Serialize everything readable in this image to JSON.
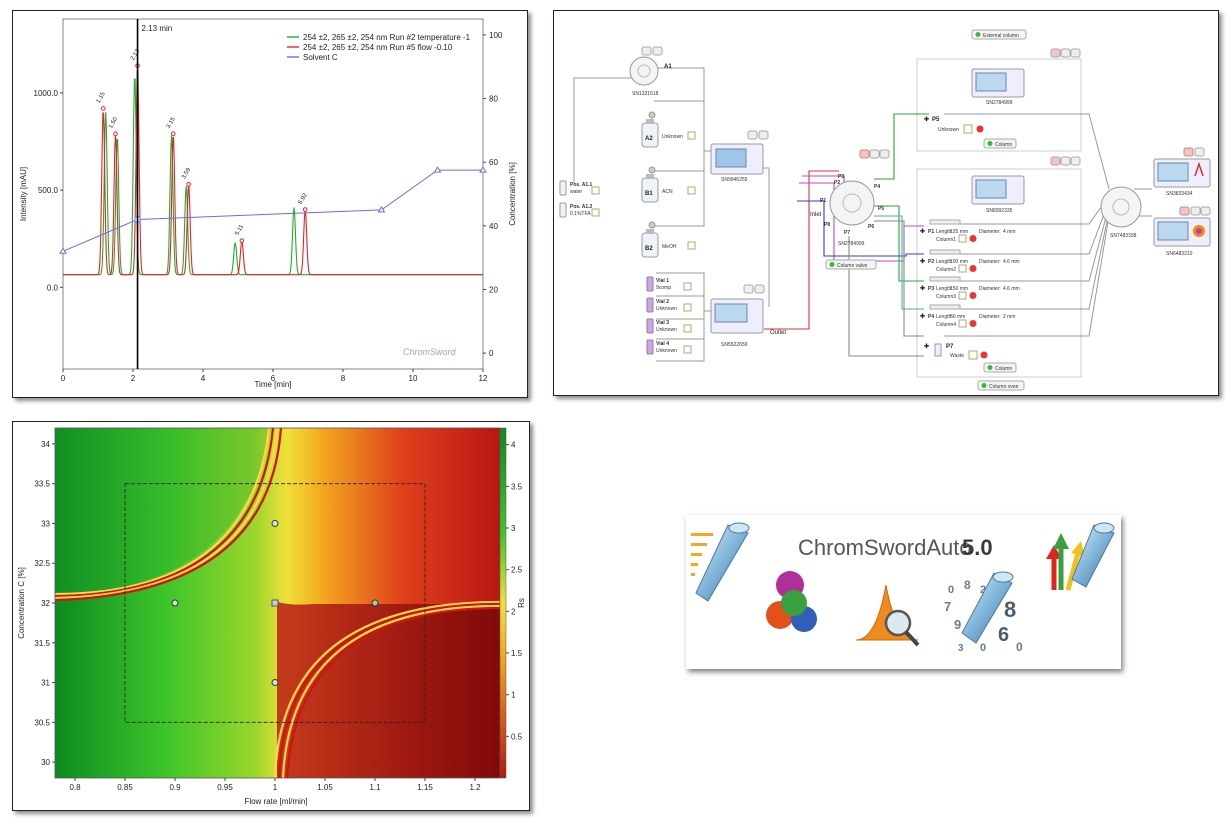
{
  "chromatogram": {
    "cursor_label": "2.13 min",
    "cursor_x": 2.13,
    "xlabel": "Time [min]",
    "ylabel_left": "Intensity [mAU]",
    "ylabel_right": "Concentration [%]",
    "x_ticks": [
      "0",
      "2",
      "4",
      "6",
      "8",
      "10",
      "12"
    ],
    "y_ticks_left": [
      "0.0",
      "500.0",
      "1000.0"
    ],
    "y_ticks_right": [
      "0",
      "20",
      "40",
      "60",
      "80",
      "100"
    ],
    "watermark": "ChromSword",
    "legend": [
      {
        "label": "254 ±2, 265 ±2, 254 nm Run #2 temperature -1",
        "color": "#1fae2b"
      },
      {
        "label": "254 ±2, 265 ±2, 254 nm Run #5 flow -0.10",
        "color": "#e0262b"
      },
      {
        "label": "Solvent C",
        "color": "#6b6be8"
      }
    ],
    "peak_labels": [
      "1.15",
      "1.50",
      "2.13",
      "3.15",
      "3.59",
      "5.11",
      "6.92"
    ],
    "chart_data": {
      "type": "line",
      "xlim": [
        0,
        12
      ],
      "ylim_left": [
        -420,
        1380
      ],
      "ylim_right": [
        -5,
        105
      ],
      "series": [
        {
          "name": "254 ±2, 265 ±2, 254 nm Run #2 temperature -1",
          "peaks": [
            [
              1.22,
              900
            ],
            [
              1.55,
              780
            ],
            [
              2.05,
              1100
            ],
            [
              3.1,
              780
            ],
            [
              3.52,
              520
            ],
            [
              4.92,
              230
            ],
            [
              6.6,
              410
            ]
          ],
          "baseline": 65
        },
        {
          "name": "254 ±2, 265 ±2, 254 nm Run #5 flow -0.10",
          "peaks": [
            [
              1.15,
              920
            ],
            [
              1.5,
              790
            ],
            [
              2.13,
              1140
            ],
            [
              3.15,
              790
            ],
            [
              3.59,
              530
            ],
            [
              5.11,
              240
            ],
            [
              6.92,
              400
            ]
          ],
          "baseline": 65
        },
        {
          "name": "Solvent C",
          "axis": "right",
          "x": [
            0,
            2.13,
            9.1,
            10.7,
            12
          ],
          "y": [
            32,
            42,
            45,
            57.5,
            57.5
          ]
        }
      ]
    }
  },
  "system": {
    "external_column_label": "External column",
    "column_valve_label": "Column valve",
    "column_oven_label": "Column oven",
    "column_label": "Column",
    "outlet_label": "Outlet",
    "inlet_label": "Inlet",
    "valve_a": {
      "name": "A1",
      "serial": "SN1321518"
    },
    "bottles": [
      {
        "name": "A2",
        "content": "Unknown"
      },
      {
        "name": "B1",
        "content": "ACN"
      },
      {
        "name": "B2",
        "content": "MeOH"
      }
    ],
    "positions": [
      {
        "name": "Pos. A1.1",
        "content": "water"
      },
      {
        "name": "Pos. A1.2",
        "content": "0.1%TFA"
      }
    ],
    "vials": [
      {
        "name": "Vial 1",
        "content": "9comp"
      },
      {
        "name": "Vial 2",
        "content": "Unknown"
      },
      {
        "name": "Vial 3",
        "content": "Unknown"
      },
      {
        "name": "Vial 4",
        "content": "Unknown"
      }
    ],
    "pump_serial": "SN9946255",
    "sampler_serial": "SN5522659",
    "column_valve_serial": "SN2784999",
    "column_valve_ports": [
      "P1",
      "P2",
      "P3",
      "P4",
      "P5",
      "P6",
      "P7",
      "P8"
    ],
    "external_device_serial": "SN2784999",
    "oven_device_serial": "SN8392335",
    "external_p5": {
      "port": "P5",
      "name": "Unknown"
    },
    "columns": [
      {
        "port": "P1",
        "length": "125 mm",
        "diameter": "4 mm",
        "name": "Column1"
      },
      {
        "port": "P2",
        "length": "100 mm",
        "diameter": "4.6 mm",
        "name": "Column2"
      },
      {
        "port": "P3",
        "length": "150 mm",
        "diameter": "4.6 mm",
        "name": "Column3"
      },
      {
        "port": "P4",
        "length": "50 mm",
        "diameter": "2 mm",
        "name": "Column4"
      }
    ],
    "length_label": "Length:",
    "diameter_label": "Diameter:",
    "waste": {
      "port": "P7",
      "name": "Waste"
    },
    "selector_serial": "SN7483338",
    "detector1_serial": "SN3833434",
    "detector2_serial": "SN6483210"
  },
  "resolution_map": {
    "xlabel": "Flow rate [ml/min]",
    "ylabel": "Concentration C [%]",
    "colorbar_label": "Rs",
    "x_ticks": [
      "0.8",
      "0.85",
      "0.9",
      "0.95",
      "1",
      "1.05",
      "1.1",
      "1.15",
      "1.2"
    ],
    "y_ticks": [
      "30",
      "30.5",
      "31",
      "31.5",
      "32",
      "32.5",
      "33",
      "33.5",
      "34"
    ],
    "rs_ticks": [
      "0.5",
      "1",
      "1.5",
      "2",
      "2.5",
      "3",
      "3.5",
      "4"
    ],
    "xlim": [
      0.78,
      1.225
    ],
    "ylim": [
      29.8,
      34.2
    ],
    "rs_lim": [
      0,
      4.2
    ],
    "design_box": {
      "x": [
        0.85,
        1.15
      ],
      "y": [
        30.5,
        33.5
      ]
    },
    "points": [
      [
        0.9,
        32
      ],
      [
        1.0,
        33
      ],
      [
        1.0,
        32
      ],
      [
        1.1,
        32
      ],
      [
        1.0,
        31
      ]
    ]
  },
  "logo": {
    "brand": "ChromSwordAuto",
    "version": "5.0"
  }
}
